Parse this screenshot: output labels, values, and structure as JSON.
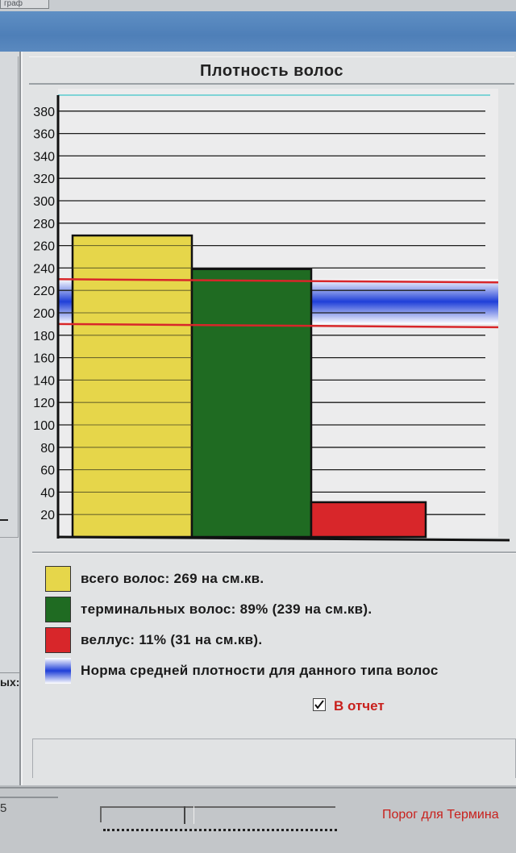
{
  "window": {
    "tab_fragment": "граф",
    "left_fragment": "ых:",
    "status_number": "5",
    "threshold_label": "Порог для Термина"
  },
  "chart_data": {
    "type": "bar",
    "title": "Плотность волос",
    "categories": [
      "всего волос",
      "терминальных волос",
      "веллус"
    ],
    "values": [
      269,
      239,
      31
    ],
    "colors": [
      "#e6d64a",
      "#1f6b22",
      "#d8262a"
    ],
    "ylim": [
      0,
      400
    ],
    "yticks": [
      20,
      40,
      60,
      80,
      100,
      120,
      140,
      160,
      180,
      200,
      220,
      240,
      260,
      280,
      300,
      320,
      340,
      360,
      380
    ],
    "grid": true,
    "norm_band": {
      "low": 190,
      "high": 230,
      "color": "#1f3fd8"
    },
    "reference_lines": [
      {
        "value": 190,
        "color": "#d8262a"
      },
      {
        "value": 230,
        "color": "#d8262a"
      }
    ],
    "top_line": {
      "value": 400,
      "color": "#7fd3d6"
    }
  },
  "legend": [
    {
      "label": "всего волос: 269 на см.кв.",
      "color": "#e6d64a",
      "icon": "yellow-swatch"
    },
    {
      "label": "терминальных волос: 89% (239 на см.кв).",
      "color": "#1f6b22",
      "icon": "green-swatch"
    },
    {
      "label": "веллус: 11% (31 на см.кв).",
      "color": "#d8262a",
      "icon": "red-swatch"
    },
    {
      "label": "Норма средней плотности для данного типа волос",
      "color": "#1f3fd8",
      "icon": "blue-gradient-swatch"
    }
  ],
  "report_checkbox": {
    "label": "В отчет",
    "checked": true
  }
}
